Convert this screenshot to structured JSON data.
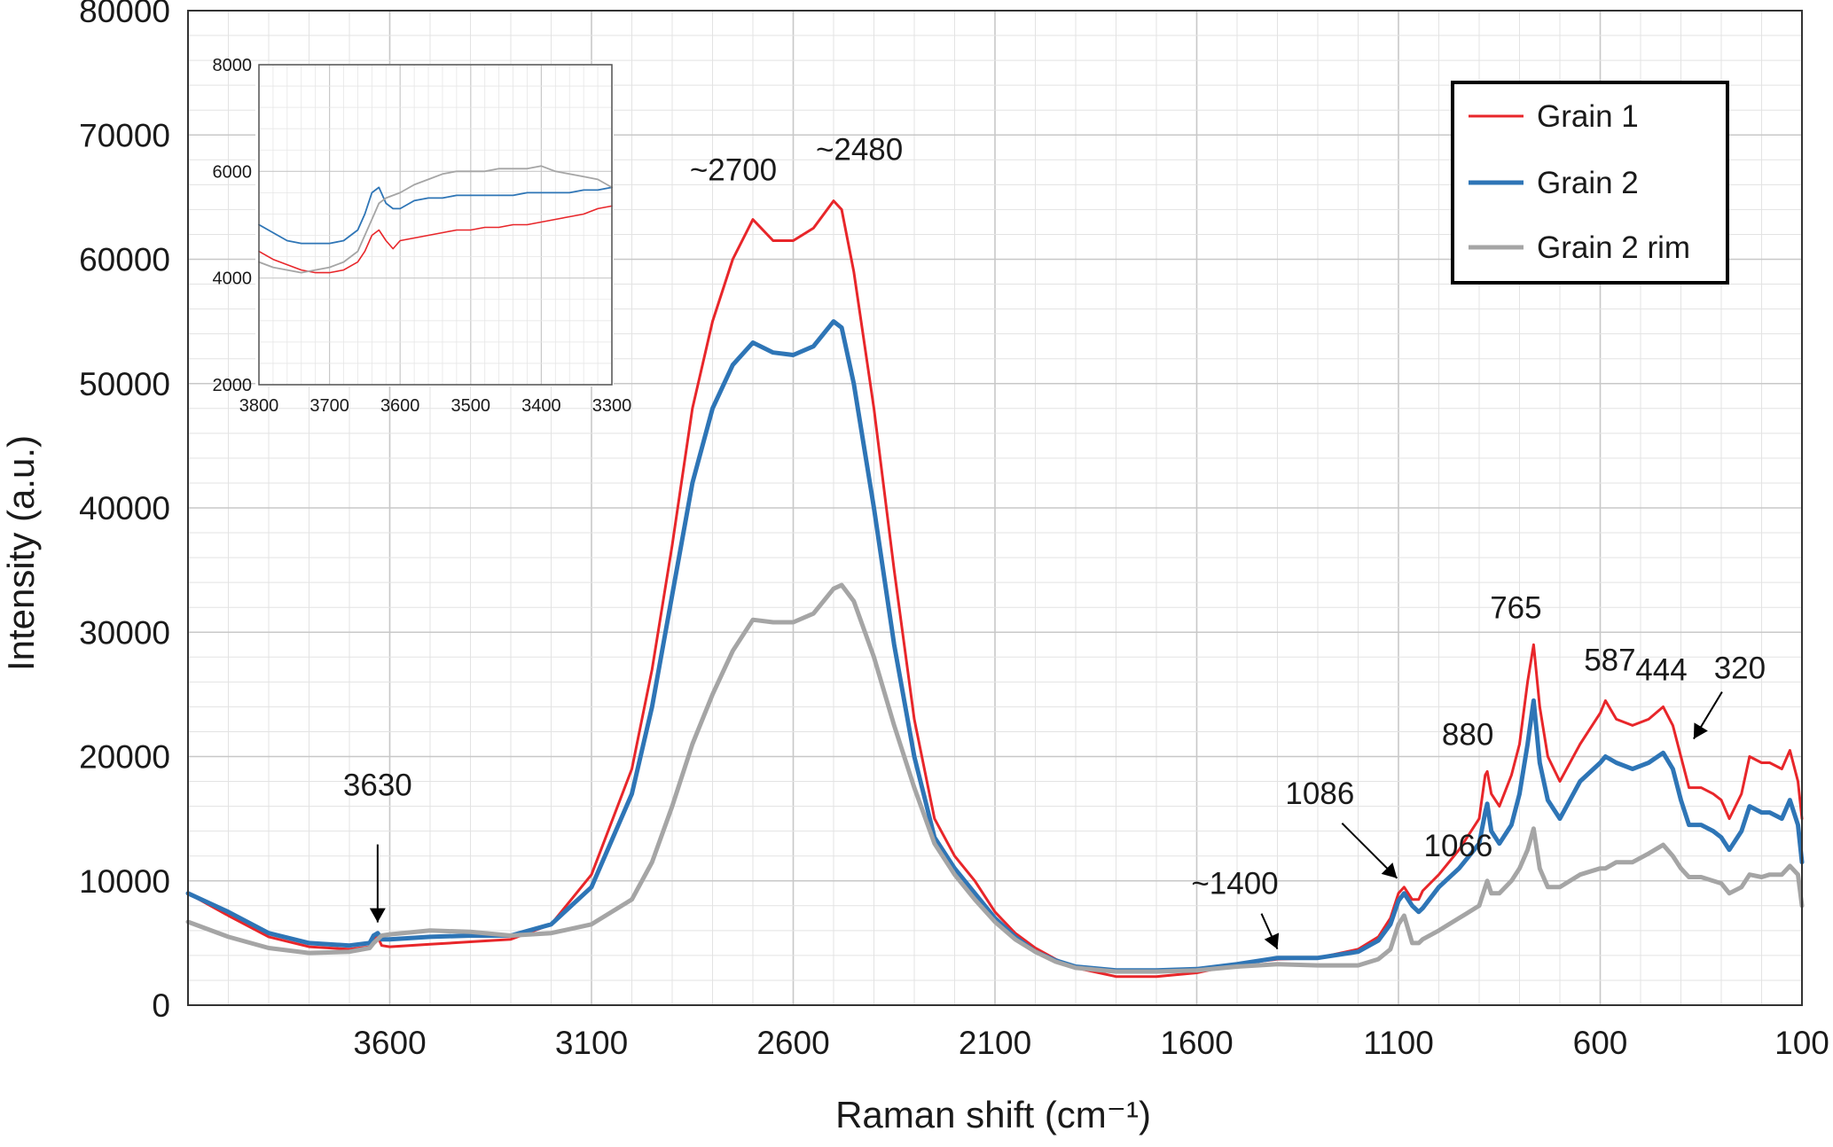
{
  "chart_data": [
    {
      "type": "line",
      "xlabel": "Raman shift (cm⁻¹)",
      "ylabel": "Intensity (a.u.)",
      "xlim": [
        4100,
        100
      ],
      "ylim": [
        0,
        80000
      ],
      "x_reversed": true,
      "x_ticks": [
        3600,
        3100,
        2600,
        2100,
        1600,
        1100,
        600,
        100
      ],
      "x_tick_labels": [
        "3600",
        "3100",
        "2600",
        "2100",
        "1600",
        "1100",
        "600",
        "100"
      ],
      "y_ticks": [
        0,
        10000,
        20000,
        30000,
        40000,
        50000,
        60000,
        70000,
        80000
      ],
      "y_tick_labels": [
        "0",
        "10000",
        "20000",
        "30000",
        "40000",
        "50000",
        "60000",
        "70000",
        "80000"
      ],
      "grid": "major and minor",
      "legend_position": "top-right",
      "series": [
        {
          "name": "Grain 1",
          "color": "#e8262a",
          "x": [
            4100,
            4000,
            3900,
            3800,
            3700,
            3650,
            3640,
            3630,
            3620,
            3600,
            3500,
            3400,
            3300,
            3200,
            3100,
            3000,
            2950,
            2900,
            2850,
            2800,
            2750,
            2700,
            2650,
            2600,
            2550,
            2500,
            2480,
            2450,
            2400,
            2350,
            2300,
            2250,
            2200,
            2150,
            2100,
            2050,
            2000,
            1950,
            1900,
            1800,
            1700,
            1600,
            1500,
            1400,
            1300,
            1200,
            1150,
            1120,
            1100,
            1086,
            1066,
            1050,
            1040,
            1000,
            950,
            900,
            885,
            880,
            870,
            850,
            820,
            800,
            780,
            765,
            750,
            730,
            700,
            650,
            600,
            587,
            560,
            520,
            480,
            444,
            420,
            400,
            380,
            350,
            320,
            300,
            280,
            250,
            230,
            200,
            180,
            150,
            130,
            110,
            100
          ],
          "values": [
            9000,
            7200,
            5500,
            4700,
            4500,
            4700,
            5300,
            5500,
            4800,
            4700,
            4900,
            5100,
            5300,
            6500,
            10500,
            19000,
            27000,
            37000,
            48000,
            55000,
            60000,
            63200,
            61500,
            61500,
            62500,
            64700,
            64000,
            59000,
            48000,
            35000,
            23000,
            15000,
            12000,
            10000,
            7500,
            5800,
            4600,
            3700,
            3000,
            2300,
            2300,
            2600,
            3300,
            3700,
            3800,
            4500,
            5500,
            7000,
            9000,
            9500,
            8500,
            8500,
            9200,
            10500,
            12500,
            15000,
            18500,
            18800,
            17000,
            16000,
            18500,
            21000,
            26000,
            29000,
            24000,
            20000,
            18000,
            21000,
            23500,
            24500,
            23000,
            22500,
            23000,
            24000,
            22500,
            20000,
            17500,
            17500,
            17000,
            16500,
            15000,
            17000,
            20000,
            19500,
            19500,
            19000,
            20500,
            18000,
            15000
          ]
        },
        {
          "name": "Grain 2",
          "color": "#2e75b6",
          "x": [
            4100,
            4000,
            3900,
            3800,
            3700,
            3650,
            3640,
            3630,
            3620,
            3600,
            3500,
            3400,
            3300,
            3200,
            3100,
            3000,
            2950,
            2900,
            2850,
            2800,
            2750,
            2700,
            2650,
            2600,
            2550,
            2500,
            2480,
            2450,
            2400,
            2350,
            2300,
            2250,
            2200,
            2150,
            2100,
            2050,
            2000,
            1950,
            1900,
            1800,
            1700,
            1600,
            1500,
            1400,
            1300,
            1200,
            1150,
            1120,
            1100,
            1086,
            1066,
            1050,
            1040,
            1000,
            950,
            900,
            885,
            880,
            870,
            850,
            820,
            800,
            780,
            765,
            750,
            730,
            700,
            650,
            600,
            587,
            560,
            520,
            480,
            444,
            420,
            400,
            380,
            350,
            320,
            300,
            280,
            250,
            230,
            200,
            180,
            150,
            130,
            110,
            100
          ],
          "values": [
            9000,
            7500,
            5800,
            5000,
            4800,
            5000,
            5600,
            5800,
            5300,
            5300,
            5500,
            5600,
            5600,
            6500,
            9500,
            17000,
            24000,
            33000,
            42000,
            48000,
            51500,
            53300,
            52500,
            52300,
            53000,
            55000,
            54500,
            50000,
            40000,
            29000,
            20000,
            13500,
            11000,
            9000,
            7000,
            5500,
            4300,
            3600,
            3100,
            2800,
            2800,
            2900,
            3300,
            3800,
            3800,
            4300,
            5200,
            6500,
            8400,
            9000,
            8000,
            7500,
            7800,
            9500,
            11000,
            13000,
            15500,
            16200,
            14000,
            13000,
            14500,
            17000,
            21000,
            24500,
            19500,
            16500,
            15000,
            18000,
            19500,
            20000,
            19500,
            19000,
            19500,
            20300,
            19000,
            16500,
            14500,
            14500,
            14000,
            13500,
            12500,
            14000,
            16000,
            15500,
            15500,
            15000,
            16500,
            14500,
            11500
          ]
        },
        {
          "name": "Grain 2 rim",
          "color": "#a5a5a5",
          "x": [
            4100,
            4000,
            3900,
            3800,
            3700,
            3650,
            3640,
            3630,
            3620,
            3600,
            3500,
            3400,
            3300,
            3200,
            3100,
            3000,
            2950,
            2900,
            2850,
            2800,
            2750,
            2700,
            2650,
            2600,
            2550,
            2500,
            2480,
            2450,
            2400,
            2350,
            2300,
            2250,
            2200,
            2150,
            2100,
            2050,
            2000,
            1950,
            1900,
            1800,
            1700,
            1600,
            1500,
            1400,
            1300,
            1200,
            1150,
            1120,
            1100,
            1086,
            1066,
            1050,
            1040,
            1000,
            950,
            900,
            885,
            880,
            870,
            850,
            820,
            800,
            780,
            765,
            750,
            730,
            700,
            650,
            600,
            587,
            560,
            520,
            480,
            444,
            420,
            400,
            380,
            350,
            320,
            300,
            280,
            250,
            230,
            200,
            180,
            150,
            130,
            110,
            100
          ],
          "values": [
            6700,
            5500,
            4600,
            4200,
            4300,
            4600,
            5000,
            5300,
            5600,
            5700,
            6000,
            5900,
            5600,
            5800,
            6500,
            8500,
            11500,
            16000,
            21000,
            25000,
            28500,
            31000,
            30800,
            30800,
            31500,
            33500,
            33800,
            32500,
            28000,
            22500,
            17500,
            13000,
            10500,
            8500,
            6700,
            5300,
            4300,
            3500,
            3000,
            2700,
            2700,
            2800,
            3100,
            3300,
            3200,
            3200,
            3700,
            4500,
            6500,
            7200,
            5000,
            5000,
            5300,
            6000,
            7000,
            8000,
            9500,
            10000,
            9000,
            9000,
            10000,
            11000,
            12500,
            14200,
            11000,
            9500,
            9500,
            10500,
            11000,
            11000,
            11500,
            11500,
            12200,
            12900,
            12000,
            11000,
            10300,
            10300,
            10000,
            9800,
            9000,
            9500,
            10500,
            10300,
            10500,
            10500,
            11200,
            10500,
            8000
          ]
        }
      ],
      "annotations": [
        {
          "text": "~2700",
          "x": 2700,
          "y": 63200
        },
        {
          "text": "~2480",
          "x": 2480,
          "y": 64700
        },
        {
          "text": "3630",
          "x": 3630,
          "y": 5800,
          "arrow": true
        },
        {
          "text": "~1400",
          "x": 1400,
          "y": 3800,
          "arrow": true
        },
        {
          "text": "1086",
          "x": 1086,
          "y": 9500,
          "arrow": true
        },
        {
          "text": "1066",
          "x": 1066,
          "y": 9000
        },
        {
          "text": "880",
          "x": 880,
          "y": 18800
        },
        {
          "text": "765",
          "x": 765,
          "y": 29000
        },
        {
          "text": "587",
          "x": 587,
          "y": 24500
        },
        {
          "text": "444",
          "x": 444,
          "y": 24000
        },
        {
          "text": "320",
          "x": 320,
          "y": 17000,
          "arrow": true
        }
      ]
    },
    {
      "type": "line",
      "role": "inset",
      "xlim": [
        3800,
        3300
      ],
      "ylim": [
        2000,
        8000
      ],
      "x_reversed": true,
      "x_ticks": [
        3800,
        3700,
        3600,
        3500,
        3400,
        3300
      ],
      "x_tick_labels": [
        "3800",
        "3700",
        "3600",
        "3500",
        "3400",
        "3300"
      ],
      "y_ticks": [
        2000,
        4000,
        6000,
        8000
      ],
      "y_tick_labels": [
        "2000",
        "4000",
        "6000",
        "8000"
      ],
      "grid": "major and minor",
      "series": [
        {
          "name": "Grain 1",
          "color": "#e8262a",
          "x": [
            3800,
            3780,
            3760,
            3740,
            3720,
            3700,
            3680,
            3660,
            3650,
            3640,
            3630,
            3620,
            3610,
            3600,
            3580,
            3560,
            3540,
            3520,
            3500,
            3480,
            3460,
            3440,
            3420,
            3400,
            3380,
            3360,
            3340,
            3320,
            3300
          ],
          "values": [
            4500,
            4350,
            4250,
            4150,
            4100,
            4100,
            4150,
            4300,
            4500,
            4800,
            4900,
            4700,
            4550,
            4700,
            4750,
            4800,
            4850,
            4900,
            4900,
            4950,
            4950,
            5000,
            5000,
            5050,
            5100,
            5150,
            5200,
            5300,
            5350
          ]
        },
        {
          "name": "Grain 2",
          "color": "#2e75b6",
          "x": [
            3800,
            3780,
            3760,
            3740,
            3720,
            3700,
            3680,
            3660,
            3650,
            3640,
            3630,
            3620,
            3610,
            3600,
            3580,
            3560,
            3540,
            3520,
            3500,
            3480,
            3460,
            3440,
            3420,
            3400,
            3380,
            3360,
            3340,
            3320,
            3300
          ],
          "values": [
            5000,
            4850,
            4700,
            4650,
            4650,
            4650,
            4700,
            4900,
            5200,
            5600,
            5700,
            5400,
            5300,
            5300,
            5450,
            5500,
            5500,
            5550,
            5550,
            5550,
            5550,
            5550,
            5600,
            5600,
            5600,
            5600,
            5650,
            5650,
            5700
          ]
        },
        {
          "name": "Grain 2 rim",
          "color": "#a5a5a5",
          "x": [
            3800,
            3780,
            3760,
            3740,
            3720,
            3700,
            3680,
            3660,
            3650,
            3640,
            3630,
            3620,
            3610,
            3600,
            3580,
            3560,
            3540,
            3520,
            3500,
            3480,
            3460,
            3440,
            3420,
            3400,
            3380,
            3360,
            3340,
            3320,
            3300
          ],
          "values": [
            4300,
            4200,
            4150,
            4100,
            4150,
            4200,
            4300,
            4500,
            4800,
            5100,
            5400,
            5500,
            5550,
            5600,
            5750,
            5850,
            5950,
            6000,
            6000,
            6000,
            6050,
            6050,
            6050,
            6100,
            6000,
            5950,
            5900,
            5850,
            5700
          ]
        }
      ]
    }
  ]
}
